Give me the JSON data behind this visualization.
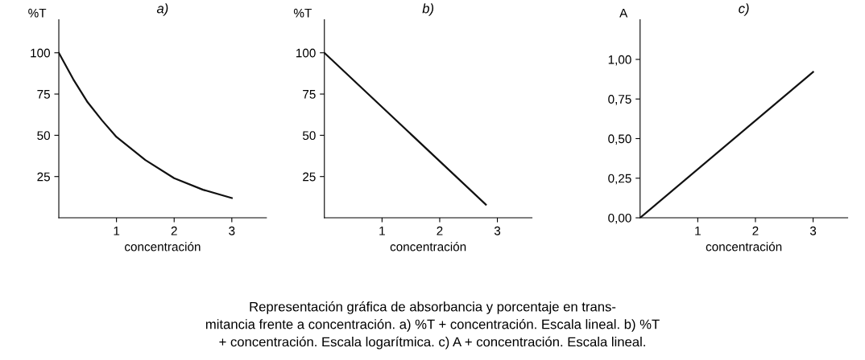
{
  "chart_data": [
    {
      "type": "line",
      "title": "a)",
      "ylabel": "%T",
      "xlabel": "concentración",
      "x": [
        0,
        0.25,
        0.5,
        0.75,
        1,
        1.5,
        2,
        2.5,
        3
      ],
      "values": [
        100,
        84,
        70,
        59,
        49,
        35,
        24,
        17,
        12
      ],
      "color": "#111111",
      "xlim": [
        0,
        3.6
      ],
      "ylim": [
        0,
        120
      ],
      "xticks": [
        1,
        2,
        3
      ],
      "yticks": [
        25,
        50,
        75,
        100
      ],
      "grid": false,
      "marker": "none",
      "line_style": "solid"
    },
    {
      "type": "line",
      "title": "b)",
      "ylabel": "%T",
      "xlabel": "concentración",
      "x": [
        0,
        2.8
      ],
      "values": [
        100,
        8
      ],
      "color": "#111111",
      "xlim": [
        0,
        3.6
      ],
      "ylim": [
        0,
        120
      ],
      "xticks": [
        1,
        2,
        3
      ],
      "yticks": [
        25,
        50,
        75,
        100
      ],
      "grid": false,
      "marker": "none",
      "line_style": "solid",
      "annotations": [
        "Representación gráfica de absorbancia y porcentaje en trans-\nmitancia frente a concentración. a) %T + concentración. Escala lineal. b) %T\n+ concentración. Escala logarítmica. c) A + concentración. Escala lineal."
      ]
    },
    {
      "type": "line",
      "title": "c)",
      "ylabel": "A",
      "xlabel": "concentración",
      "x": [
        0,
        3
      ],
      "values": [
        0,
        0.92
      ],
      "color": "#111111",
      "xlim": [
        0,
        3.6
      ],
      "ylim": [
        0,
        1.25
      ],
      "xticks": [
        1,
        2,
        3
      ],
      "yticks": [
        {
          "value": 0,
          "label": "0,00"
        },
        {
          "value": 0.25,
          "label": "0,25"
        },
        {
          "value": 0.5,
          "label": "0,50"
        },
        {
          "value": 0.75,
          "label": "0,75"
        },
        {
          "value": 1,
          "label": "1,00"
        }
      ],
      "grid": false,
      "marker": "none",
      "line_style": "solid"
    }
  ]
}
